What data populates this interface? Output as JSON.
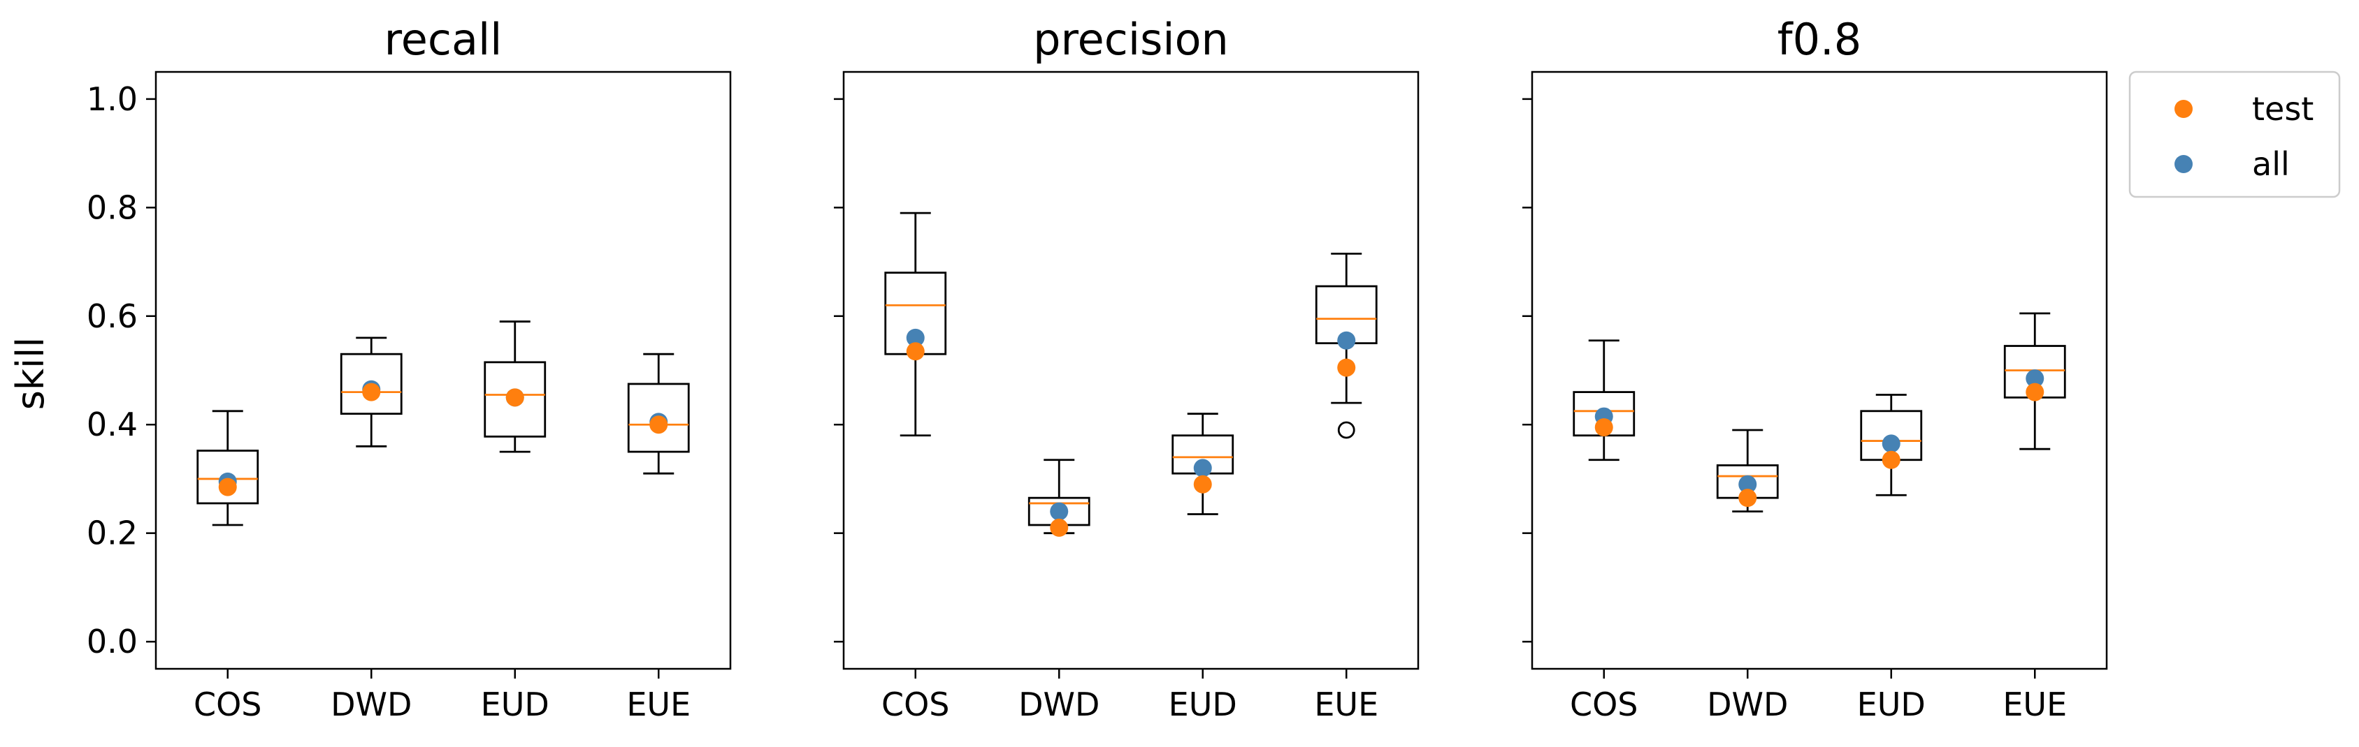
{
  "chart_data": {
    "type": "box",
    "ylabel": "skill",
    "ylim": [
      -0.05,
      1.05
    ],
    "yticks": [
      "0.0",
      "0.2",
      "0.4",
      "0.6",
      "0.8",
      "1.0"
    ],
    "categories": [
      "COS",
      "DWD",
      "EUD",
      "EUE"
    ],
    "legend": {
      "placement": "outside-top-right",
      "entries": [
        {
          "name": "test",
          "color": "#ff7f0e"
        },
        {
          "name": "all",
          "color": "#4682b4"
        }
      ]
    },
    "colors": {
      "median": "#ff7f0e",
      "test": "#ff7f0e",
      "all": "#4682b4",
      "box": "#000000"
    },
    "panels": [
      {
        "title": "recall",
        "boxes": [
          {
            "category": "COS",
            "whisker_low": 0.215,
            "q1": 0.255,
            "median": 0.3,
            "q3": 0.352,
            "whisker_high": 0.425,
            "outliers": [],
            "test": 0.285,
            "all": 0.295
          },
          {
            "category": "DWD",
            "whisker_low": 0.36,
            "q1": 0.42,
            "median": 0.46,
            "q3": 0.53,
            "whisker_high": 0.56,
            "outliers": [],
            "test": 0.46,
            "all": 0.465
          },
          {
            "category": "EUD",
            "whisker_low": 0.35,
            "q1": 0.378,
            "median": 0.455,
            "q3": 0.515,
            "whisker_high": 0.59,
            "outliers": [],
            "test": 0.45,
            "all": 0.45
          },
          {
            "category": "EUE",
            "whisker_low": 0.31,
            "q1": 0.35,
            "median": 0.4,
            "q3": 0.475,
            "whisker_high": 0.53,
            "outliers": [],
            "test": 0.4,
            "all": 0.405
          }
        ]
      },
      {
        "title": "precision",
        "boxes": [
          {
            "category": "COS",
            "whisker_low": 0.38,
            "q1": 0.53,
            "median": 0.62,
            "q3": 0.68,
            "whisker_high": 0.79,
            "outliers": [],
            "test": 0.535,
            "all": 0.56
          },
          {
            "category": "DWD",
            "whisker_low": 0.2,
            "q1": 0.215,
            "median": 0.255,
            "q3": 0.265,
            "whisker_high": 0.335,
            "outliers": [],
            "test": 0.21,
            "all": 0.24
          },
          {
            "category": "EUD",
            "whisker_low": 0.235,
            "q1": 0.31,
            "median": 0.34,
            "q3": 0.38,
            "whisker_high": 0.42,
            "outliers": [],
            "test": 0.29,
            "all": 0.32
          },
          {
            "category": "EUE",
            "whisker_low": 0.44,
            "q1": 0.55,
            "median": 0.595,
            "q3": 0.655,
            "whisker_high": 0.715,
            "outliers": [
              0.39
            ],
            "test": 0.505,
            "all": 0.555
          }
        ]
      },
      {
        "title": "f0.8",
        "boxes": [
          {
            "category": "COS",
            "whisker_low": 0.335,
            "q1": 0.38,
            "median": 0.425,
            "q3": 0.46,
            "whisker_high": 0.555,
            "outliers": [],
            "test": 0.395,
            "all": 0.415
          },
          {
            "category": "DWD",
            "whisker_low": 0.24,
            "q1": 0.265,
            "median": 0.305,
            "q3": 0.325,
            "whisker_high": 0.39,
            "outliers": [],
            "test": 0.265,
            "all": 0.29
          },
          {
            "category": "EUD",
            "whisker_low": 0.27,
            "q1": 0.335,
            "median": 0.37,
            "q3": 0.425,
            "whisker_high": 0.455,
            "outliers": [],
            "test": 0.335,
            "all": 0.365
          },
          {
            "category": "EUE",
            "whisker_low": 0.355,
            "q1": 0.45,
            "median": 0.5,
            "q3": 0.545,
            "whisker_high": 0.605,
            "outliers": [],
            "test": 0.46,
            "all": 0.485
          }
        ]
      }
    ]
  }
}
